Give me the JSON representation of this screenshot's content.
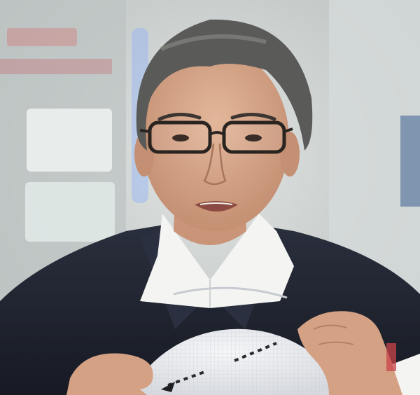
{
  "scene": {
    "subject": "man-holding-wafer",
    "colors": {
      "background_wall": "#c9cecd",
      "background_light": "#eef2f1",
      "suit": "#1f2330",
      "shirt": "#f4f4f2",
      "skin": "#d9a98c",
      "hair": "#5a5a58",
      "glasses": "#2a2420",
      "wafer": "#e9ebee",
      "accent_red": "#c9444a",
      "accent_blue": "#7fa8ff"
    }
  }
}
